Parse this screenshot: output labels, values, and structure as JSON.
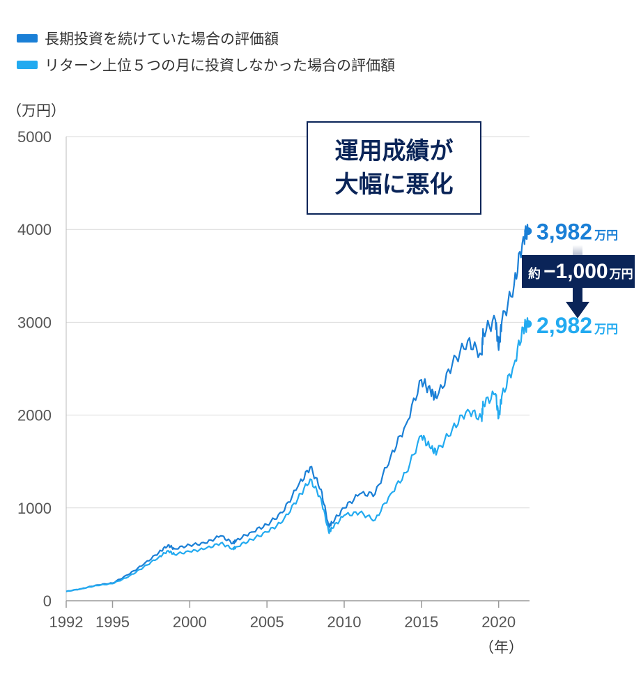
{
  "legend": [
    {
      "label": "長期投資を続けていた場合の評価額",
      "color": "#1a7fd6"
    },
    {
      "label": "リターン上位５つの月に投資しなかった場合の評価額",
      "color": "#22aaf0"
    }
  ],
  "unit_label": "（万円）",
  "year_unit": "（年）",
  "callout": {
    "text": "運用成績が\n大幅に悪化"
  },
  "annotations": {
    "top_value": "3,982",
    "top_unit": "万円",
    "bottom_value": "2,982",
    "bottom_unit": "万円",
    "diff_prefix": "約",
    "diff_value": "−1,000",
    "diff_unit": "万円"
  },
  "chart_data": {
    "type": "line",
    "xlabel": "（年）",
    "ylabel": "（万円）",
    "xlim": [
      1992,
      2022
    ],
    "ylim": [
      0,
      5000
    ],
    "x_ticks": [
      1992,
      1995,
      2000,
      2005,
      2010,
      2015,
      2020
    ],
    "y_ticks": [
      0,
      1000,
      2000,
      3000,
      4000,
      5000
    ],
    "x": [
      1992,
      1993,
      1994,
      1995,
      1996,
      1997,
      1998,
      1998.6,
      1999,
      2000,
      2001,
      2002,
      2002.8,
      2003,
      2004,
      2005,
      2006,
      2007,
      2007.8,
      2008.5,
      2009,
      2009.2,
      2010,
      2011,
      2012,
      2013,
      2014,
      2015,
      2015.6,
      2016,
      2017,
      2018,
      2018.9,
      2019,
      2019.8,
      2020,
      2020.2,
      2021,
      2021.6,
      2021.9
    ],
    "series": [
      {
        "name": "長期投資を続けていた場合の評価額",
        "color": "#1a7fd6",
        "values": [
          100,
          130,
          170,
          190,
          280,
          390,
          520,
          600,
          560,
          600,
          620,
          700,
          620,
          650,
          740,
          820,
          950,
          1230,
          1440,
          1200,
          800,
          840,
          1000,
          1150,
          1150,
          1550,
          1900,
          2380,
          2250,
          2180,
          2550,
          2800,
          2650,
          2900,
          3020,
          2700,
          3000,
          3400,
          3920,
          3982
        ]
      },
      {
        "name": "リターン上位５つの月に投資しなかった場合の評価額",
        "color": "#22aaf0",
        "values": [
          100,
          130,
          165,
          185,
          255,
          360,
          470,
          540,
          500,
          530,
          560,
          620,
          560,
          580,
          660,
          740,
          850,
          1100,
          1310,
          1100,
          740,
          780,
          920,
          950,
          870,
          1150,
          1380,
          1780,
          1640,
          1600,
          1850,
          2060,
          1960,
          2120,
          2230,
          1970,
          2200,
          2550,
          2940,
          2982
        ]
      }
    ]
  }
}
